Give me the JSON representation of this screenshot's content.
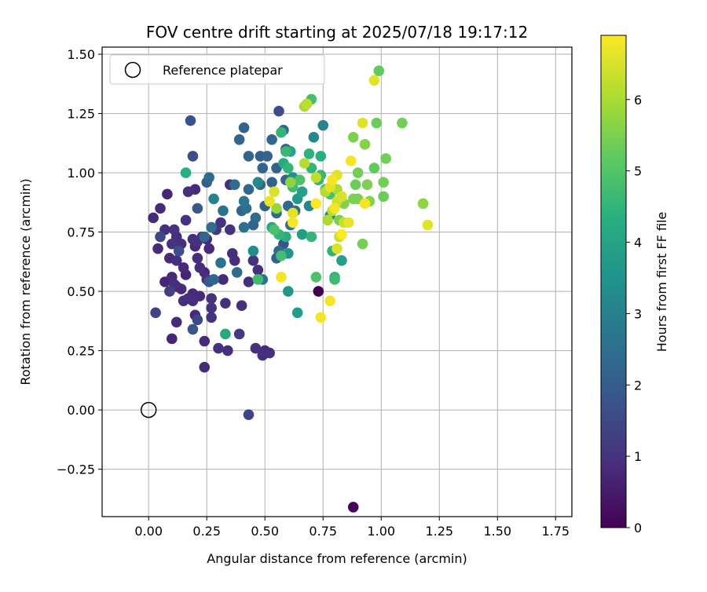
{
  "chart_data": {
    "type": "scatter",
    "title": "FOV centre drift starting at 2025/07/18 19:17:12",
    "xlabel": "Angular distance from reference (arcmin)",
    "ylabel": "Rotation from reference (arcmin)",
    "xlim": [
      -0.2,
      1.82
    ],
    "ylim": [
      -0.45,
      1.53
    ],
    "xticks": [
      0.0,
      0.25,
      0.5,
      0.75,
      1.0,
      1.25,
      1.5,
      1.75
    ],
    "xtick_labels": [
      "0.00",
      "0.25",
      "0.50",
      "0.75",
      "1.00",
      "1.25",
      "1.50",
      "1.75"
    ],
    "yticks": [
      -0.25,
      0.0,
      0.25,
      0.5,
      0.75,
      1.0,
      1.25,
      1.5
    ],
    "ytick_labels": [
      "−0.25",
      "0.00",
      "0.25",
      "0.50",
      "0.75",
      "1.00",
      "1.25",
      "1.50"
    ],
    "grid": true,
    "legend": {
      "placement": "upper-left",
      "entries": [
        "Reference platepar"
      ]
    },
    "reference_point": {
      "x": 0.0,
      "y": 0.0
    },
    "colorbar": {
      "label": "Hours from first FF file",
      "colormap": "viridis",
      "range": [
        0,
        6.9
      ],
      "ticks": [
        0,
        1,
        2,
        3,
        4,
        5,
        6
      ],
      "tick_labels": [
        "0",
        "1",
        "2",
        "3",
        "4",
        "5",
        "6"
      ]
    },
    "series": [
      {
        "points": [
          [
            0.73,
            0.5,
            0.0
          ],
          [
            0.88,
            -0.41,
            0.1
          ],
          [
            0.02,
            0.81,
            0.8
          ],
          [
            0.05,
            0.85,
            0.8
          ],
          [
            0.08,
            0.91,
            0.7
          ],
          [
            0.07,
            0.76,
            0.9
          ],
          [
            0.04,
            0.68,
            0.8
          ],
          [
            0.09,
            0.64,
            0.8
          ],
          [
            0.11,
            0.76,
            1.0
          ],
          [
            0.12,
            0.73,
            0.9
          ],
          [
            0.1,
            0.7,
            1.0
          ],
          [
            0.14,
            0.7,
            0.9
          ],
          [
            0.12,
            0.63,
            0.9
          ],
          [
            0.15,
            0.6,
            0.8
          ],
          [
            0.16,
            0.57,
            0.7
          ],
          [
            0.07,
            0.54,
            0.7
          ],
          [
            0.1,
            0.56,
            0.8
          ],
          [
            0.12,
            0.52,
            0.8
          ],
          [
            0.14,
            0.51,
            0.8
          ],
          [
            0.09,
            0.5,
            1.3
          ],
          [
            0.11,
            0.53,
            0.9
          ],
          [
            0.15,
            0.46,
            0.9
          ],
          [
            0.17,
            0.47,
            0.9
          ],
          [
            0.19,
            0.49,
            0.8
          ],
          [
            0.19,
            0.46,
            0.9
          ],
          [
            0.22,
            0.48,
            0.8
          ],
          [
            0.12,
            0.37,
            0.8
          ],
          [
            0.1,
            0.3,
            0.7
          ],
          [
            0.2,
            0.4,
            0.8
          ],
          [
            0.24,
            0.29,
            0.8
          ],
          [
            0.24,
            0.18,
            0.8
          ],
          [
            0.16,
            0.8,
            1.0
          ],
          [
            0.17,
            0.92,
            0.9
          ],
          [
            0.2,
            0.93,
            0.8
          ],
          [
            0.19,
            0.72,
            0.9
          ],
          [
            0.21,
            0.71,
            1.0
          ],
          [
            0.2,
            0.69,
            0.8
          ],
          [
            0.23,
            0.73,
            0.9
          ],
          [
            0.25,
            0.72,
            0.8
          ],
          [
            0.26,
            0.68,
            0.8
          ],
          [
            0.21,
            0.64,
            0.9
          ],
          [
            0.22,
            0.6,
            0.9
          ],
          [
            0.24,
            0.58,
            0.8
          ],
          [
            0.25,
            0.55,
            0.9
          ],
          [
            0.27,
            0.47,
            1.0
          ],
          [
            0.27,
            0.43,
            1.0
          ],
          [
            0.27,
            0.39,
            1.0
          ],
          [
            0.3,
            0.26,
            1.0
          ],
          [
            0.34,
            0.25,
            0.9
          ],
          [
            0.33,
            0.45,
            0.9
          ],
          [
            0.4,
            0.44,
            0.9
          ],
          [
            0.39,
            0.32,
            1.2
          ],
          [
            0.46,
            0.26,
            0.9
          ],
          [
            0.49,
            0.23,
            0.9
          ],
          [
            0.5,
            0.25,
            0.8
          ],
          [
            0.52,
            0.24,
            0.9
          ],
          [
            0.43,
            0.54,
            0.9
          ],
          [
            0.47,
            0.59,
            0.9
          ],
          [
            0.45,
            0.63,
            1.0
          ],
          [
            0.36,
            0.66,
            0.9
          ],
          [
            0.37,
            0.63,
            0.9
          ],
          [
            0.35,
            0.76,
            1.0
          ],
          [
            0.31,
            0.79,
            1.0
          ],
          [
            0.29,
            0.76,
            1.1
          ],
          [
            0.35,
            0.95,
            0.9
          ],
          [
            0.43,
            -0.02,
            1.4
          ],
          [
            0.32,
            0.55,
            0.8
          ],
          [
            0.03,
            0.41,
            1.4
          ],
          [
            0.05,
            0.73,
            1.5
          ],
          [
            0.13,
            0.67,
            1.6
          ],
          [
            0.18,
            1.22,
            1.7
          ],
          [
            0.19,
            1.07,
            1.6
          ],
          [
            0.21,
            0.38,
            1.5
          ],
          [
            0.19,
            0.34,
            1.8
          ],
          [
            0.26,
            0.98,
            2.4
          ],
          [
            0.25,
            0.96,
            2.1
          ],
          [
            0.26,
            0.54,
            1.9
          ],
          [
            0.28,
            0.55,
            2.2
          ],
          [
            0.31,
            0.62,
            2.6
          ],
          [
            0.27,
            0.77,
            2.5
          ],
          [
            0.24,
            0.73,
            2.3
          ],
          [
            0.21,
            0.85,
            1.9
          ],
          [
            0.32,
            0.84,
            2.6
          ],
          [
            0.37,
            0.95,
            2.4
          ],
          [
            0.41,
            0.88,
            2.7
          ],
          [
            0.4,
            0.84,
            2.2
          ],
          [
            0.42,
            0.85,
            2.5
          ],
          [
            0.43,
            0.93,
            2.3
          ],
          [
            0.41,
            1.19,
            2.2
          ],
          [
            0.43,
            1.07,
            2.2
          ],
          [
            0.39,
            1.14,
            2.2
          ],
          [
            0.48,
            1.07,
            2.1
          ],
          [
            0.49,
            1.02,
            2.2
          ],
          [
            0.48,
            0.95,
            2.3
          ],
          [
            0.5,
            0.86,
            2.1
          ],
          [
            0.46,
            0.81,
            2.4
          ],
          [
            0.45,
            0.78,
            2.2
          ],
          [
            0.41,
            0.77,
            2.5
          ],
          [
            0.38,
            0.58,
            2.4
          ],
          [
            0.49,
            0.55,
            2.6
          ],
          [
            0.55,
            0.64,
            2.1
          ],
          [
            0.56,
            0.67,
            2.4
          ],
          [
            0.58,
            0.7,
            1.8
          ],
          [
            0.55,
            1.02,
            2.1
          ],
          [
            0.56,
            1.26,
            1.6
          ],
          [
            0.58,
            1.18,
            2.3
          ],
          [
            0.59,
            1.1,
            2.0
          ],
          [
            0.59,
            0.97,
            2.3
          ],
          [
            0.55,
            0.83,
            2.4
          ],
          [
            0.6,
            0.86,
            2.3
          ],
          [
            0.61,
            0.78,
            2.6
          ],
          [
            0.63,
            0.84,
            2.5
          ],
          [
            0.53,
            1.14,
            2.3
          ],
          [
            0.51,
            1.07,
            2.2
          ],
          [
            0.53,
            0.96,
            2.1
          ],
          [
            0.33,
            0.32,
            4.2
          ],
          [
            0.28,
            0.89,
            3.0
          ],
          [
            0.47,
            0.96,
            3.2
          ],
          [
            0.45,
            0.67,
            3.3
          ],
          [
            0.62,
            0.98,
            3.4
          ],
          [
            0.64,
            0.89,
            3.7
          ],
          [
            0.66,
            0.92,
            3.9
          ],
          [
            0.69,
            0.86,
            3.1
          ],
          [
            0.66,
            0.74,
            3.8
          ],
          [
            0.71,
            1.15,
            3.2
          ],
          [
            0.75,
            1.2,
            3.1
          ],
          [
            0.64,
            0.41,
            3.8
          ],
          [
            0.6,
            0.5,
            3.6
          ],
          [
            0.72,
            0.56,
            4.9
          ],
          [
            0.56,
            0.74,
            4.5
          ],
          [
            0.57,
            0.65,
            4.8
          ],
          [
            0.59,
            0.73,
            4.3
          ],
          [
            0.53,
            0.77,
            4.1
          ],
          [
            0.54,
            0.76,
            4.9
          ],
          [
            0.58,
            1.04,
            4.2
          ],
          [
            0.59,
            1.09,
            4.6
          ],
          [
            0.57,
            1.17,
            4.5
          ],
          [
            0.6,
            1.02,
            4.5
          ],
          [
            0.61,
            1.09,
            4.0
          ],
          [
            0.62,
            0.94,
            4.7
          ],
          [
            0.65,
            0.97,
            4.9
          ],
          [
            0.69,
            1.08,
            4.4
          ],
          [
            0.7,
            1.31,
            4.8
          ],
          [
            0.7,
            1.02,
            4.5
          ],
          [
            0.7,
            0.73,
            4.5
          ],
          [
            0.47,
            0.55,
            4.7
          ],
          [
            0.16,
            1.0,
            4.3
          ],
          [
            0.73,
            0.97,
            4.5
          ],
          [
            0.74,
            0.99,
            4.6
          ],
          [
            0.76,
            0.93,
            4.8
          ],
          [
            0.78,
            0.91,
            4.8
          ],
          [
            0.74,
            1.07,
            4.3
          ],
          [
            0.79,
            0.67,
            4.4
          ],
          [
            0.8,
            0.56,
            4.5
          ],
          [
            0.8,
            0.55,
            4.7
          ],
          [
            0.84,
            0.87,
            5.6
          ],
          [
            0.82,
            0.8,
            5.5
          ],
          [
            0.83,
            0.63,
            3.9
          ],
          [
            0.78,
            0.82,
            3.4
          ],
          [
            0.6,
            0.66,
            3.5
          ],
          [
            0.99,
            1.43,
            5.2
          ],
          [
            0.98,
            1.21,
            5.3
          ],
          [
            1.09,
            1.21,
            5.4
          ],
          [
            0.88,
            1.15,
            5.5
          ],
          [
            0.93,
            1.12,
            5.6
          ],
          [
            0.97,
            1.02,
            5.2
          ],
          [
            0.9,
            1.0,
            5.4
          ],
          [
            0.89,
            0.95,
            5.3
          ],
          [
            1.01,
            0.96,
            5.4
          ],
          [
            1.02,
            1.06,
            5.4
          ],
          [
            0.94,
            0.95,
            5.5
          ],
          [
            0.9,
            0.89,
            5.5
          ],
          [
            0.92,
            0.7,
            5.4
          ],
          [
            1.18,
            0.87,
            5.7
          ],
          [
            1.01,
            0.9,
            5.3
          ],
          [
            0.95,
            0.88,
            5.6
          ],
          [
            0.88,
            0.89,
            5.5
          ],
          [
            0.67,
            1.28,
            6.0
          ],
          [
            0.68,
            1.29,
            6.2
          ],
          [
            0.67,
            1.04,
            6.1
          ],
          [
            0.79,
            0.84,
            6.2
          ],
          [
            0.77,
            0.8,
            6.0
          ],
          [
            0.84,
            0.79,
            6.3
          ],
          [
            0.92,
            1.21,
            6.6
          ],
          [
            0.97,
            1.39,
            6.6
          ],
          [
            0.72,
            0.98,
            6.2
          ],
          [
            0.76,
            0.92,
            6.1
          ],
          [
            0.81,
            0.93,
            6.0
          ],
          [
            0.81,
            0.88,
            6.4
          ],
          [
            0.78,
            0.94,
            6.6
          ],
          [
            0.79,
            0.97,
            6.8
          ],
          [
            0.81,
            0.99,
            6.6
          ],
          [
            0.83,
            0.9,
            6.5
          ],
          [
            0.8,
            0.85,
            6.8
          ],
          [
            0.82,
            0.73,
            6.3
          ],
          [
            0.81,
            0.68,
            6.5
          ],
          [
            0.83,
            0.74,
            6.9
          ],
          [
            0.78,
            0.46,
            6.8
          ],
          [
            0.74,
            0.39,
            6.8
          ],
          [
            0.57,
            0.56,
            6.8
          ],
          [
            0.52,
            0.88,
            6.7
          ],
          [
            0.54,
            0.92,
            6.5
          ],
          [
            0.62,
            0.83,
            6.6
          ],
          [
            0.62,
            0.79,
            6.8
          ],
          [
            0.72,
            0.87,
            6.9
          ],
          [
            0.86,
            0.79,
            6.7
          ],
          [
            0.87,
            1.05,
            6.8
          ],
          [
            0.93,
            0.87,
            6.8
          ],
          [
            1.2,
            0.78,
            6.6
          ],
          [
            0.55,
            0.85,
            5.8
          ],
          [
            0.61,
            0.96,
            5.7
          ]
        ]
      }
    ]
  }
}
